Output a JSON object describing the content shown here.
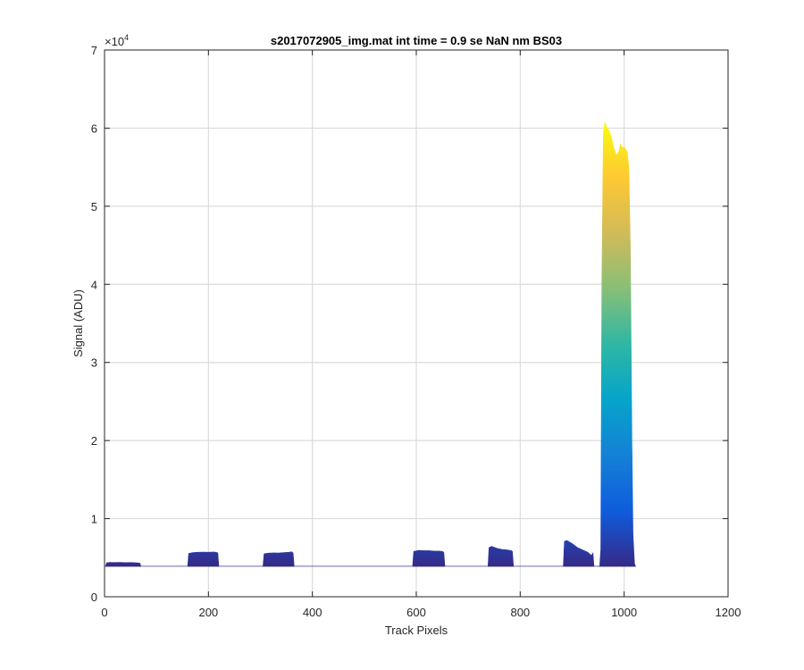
{
  "chart_data": {
    "type": "area",
    "title": "s2017072905_img.mat int time = 0.9 se  NaN nm BS03",
    "xlabel": "Track Pixels",
    "ylabel": "Signal (ADU)",
    "xlim": [
      0,
      1200
    ],
    "ylim": [
      0,
      70000
    ],
    "x_ticks": [
      0,
      200,
      400,
      600,
      800,
      1000,
      1200
    ],
    "x_tick_labels": [
      "0",
      "200",
      "400",
      "600",
      "800",
      "1000",
      "1200"
    ],
    "y_ticks": [
      0,
      10000,
      20000,
      30000,
      40000,
      50000,
      60000,
      70000
    ],
    "y_tick_labels": [
      "0",
      "1",
      "2",
      "3",
      "4",
      "5",
      "6",
      "7"
    ],
    "y_exponent": "×10",
    "y_exponent_power": "4",
    "grid": true,
    "colormap": "parula",
    "colormap_stops": [
      "#352a87",
      "#0f5cdd",
      "#1481d6",
      "#06a4ca",
      "#2eb7a4",
      "#87bf77",
      "#d1bb59",
      "#fec832",
      "#f9fb0e"
    ],
    "baseline": 3900,
    "segments": [
      {
        "x": [
          2,
          4,
          10,
          20,
          30,
          40,
          50,
          60,
          68,
          70
        ],
        "y": [
          3900,
          4350,
          4400,
          4380,
          4390,
          4370,
          4380,
          4360,
          4300,
          3900
        ]
      },
      {
        "x": [
          160,
          162,
          170,
          180,
          190,
          200,
          210,
          215,
          218,
          220
        ],
        "y": [
          3900,
          5550,
          5650,
          5700,
          5720,
          5700,
          5730,
          5680,
          5600,
          3900
        ]
      },
      {
        "x": [
          305,
          307,
          315,
          325,
          335,
          345,
          355,
          360,
          363,
          365
        ],
        "y": [
          3900,
          5500,
          5580,
          5620,
          5600,
          5650,
          5700,
          5750,
          5600,
          3900
        ]
      },
      {
        "x": [
          593,
          595,
          605,
          615,
          625,
          635,
          645,
          650,
          653,
          655
        ],
        "y": [
          3900,
          5800,
          5950,
          5900,
          5900,
          5850,
          5850,
          5800,
          5700,
          3900
        ]
      },
      {
        "x": [
          738,
          740,
          745,
          755,
          765,
          775,
          783,
          785,
          787
        ],
        "y": [
          3900,
          6300,
          6450,
          6200,
          6050,
          6000,
          5900,
          5800,
          3900
        ]
      },
      {
        "x": [
          883,
          885,
          890,
          900,
          910,
          920,
          930,
          937,
          940,
          942
        ],
        "y": [
          3900,
          7100,
          7200,
          6800,
          6300,
          6000,
          5700,
          5300,
          5600,
          3900
        ]
      },
      {
        "x": [
          950,
          953,
          955,
          957,
          960,
          963,
          966,
          970,
          975,
          980,
          985,
          990,
          993,
          996,
          1000,
          1003,
          1006,
          1009,
          1012,
          1015,
          1017,
          1020,
          1022
        ],
        "y": [
          3900,
          3900,
          6000,
          40000,
          59500,
          60700,
          60200,
          59800,
          59000,
          57500,
          56500,
          57000,
          58000,
          57500,
          57600,
          57300,
          56900,
          55000,
          45000,
          20000,
          8000,
          4200,
          3900
        ]
      }
    ]
  }
}
